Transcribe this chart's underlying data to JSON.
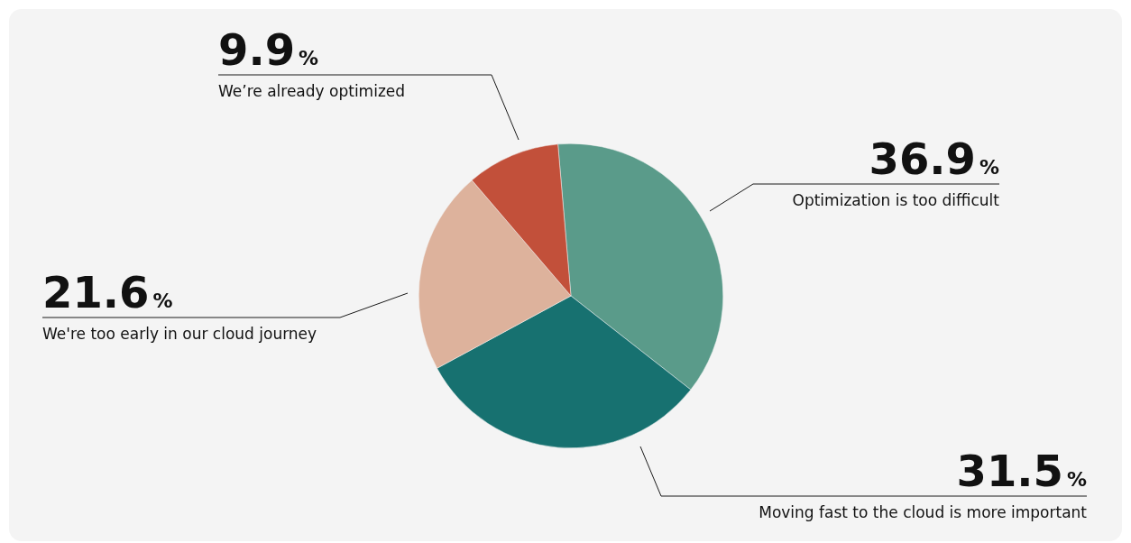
{
  "chart_data": {
    "type": "pie",
    "categories": [
      "Optimization is too difficult",
      "Moving fast to the cloud is more important",
      "We're too early in our cloud journey",
      "We’re already optimized"
    ],
    "values": [
      36.9,
      31.5,
      21.6,
      9.9
    ],
    "colors": [
      "#5a9b8a",
      "#177170",
      "#ddb29c",
      "#c2503a"
    ],
    "value_labels": [
      "36.9%",
      "31.5%",
      "21.6%",
      "9.9%"
    ],
    "legend": false
  }
}
